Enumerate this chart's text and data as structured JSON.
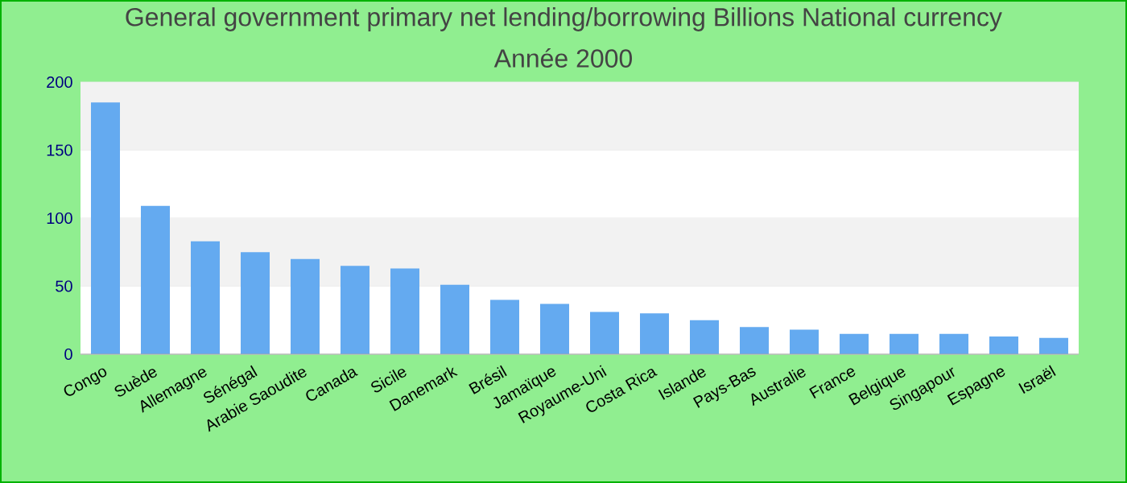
{
  "chart_data": {
    "type": "bar",
    "title": "General government primary net lending/borrowing Billions National currency",
    "subtitle": "Année 2000",
    "categories": [
      "Congo",
      "Suède",
      "Allemagne",
      "Sénégal",
      "Arabie Saoudite",
      "Canada",
      "Sicile",
      "Danemark",
      "Brésil",
      "Jamaïque",
      "Royaume-Uni",
      "Costa Rica",
      "Islande",
      "Pays-Bas",
      "Australie",
      "France",
      "Belgique",
      "Singapour",
      "Espagne",
      "Israël"
    ],
    "values": [
      185,
      109,
      83,
      75,
      70,
      65,
      63,
      51,
      40,
      37,
      31,
      30,
      25,
      20,
      18,
      15,
      15,
      15,
      13,
      12
    ],
    "color": "#64aaf0",
    "ylim": [
      0,
      200
    ],
    "yticks": [
      0,
      50,
      100,
      150,
      200
    ],
    "grid": "y"
  }
}
